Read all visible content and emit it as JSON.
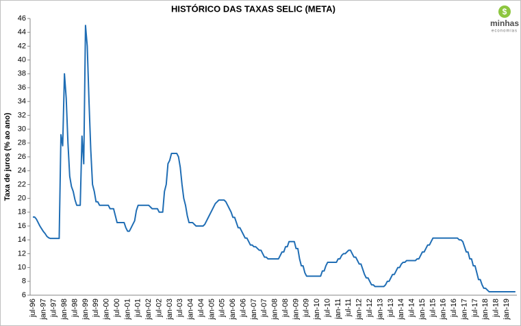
{
  "chart_data": {
    "type": "line",
    "title": "HISTÓRICO DAS TAXAS SELIC (META)",
    "y_label": "Taxa de juros (% ao ano)",
    "logo": {
      "name": "minhas",
      "tagline": "economias"
    },
    "categories": [
      "jul-96",
      null,
      null,
      null,
      null,
      null,
      "jan-97",
      null,
      null,
      null,
      null,
      null,
      "jul-97",
      null,
      null,
      null,
      null,
      null,
      "jan-98",
      null,
      null,
      null,
      null,
      null,
      "jul-98",
      null,
      null,
      null,
      null,
      null,
      "jan-99",
      null,
      null,
      null,
      null,
      null,
      "jul-99",
      null,
      null,
      null,
      null,
      null,
      "jan-00",
      null,
      null,
      null,
      null,
      null,
      "jul-00",
      null,
      null,
      null,
      null,
      null,
      "jan-01",
      null,
      null,
      null,
      null,
      null,
      "jul-01",
      null,
      null,
      null,
      null,
      null,
      "jan-02",
      null,
      null,
      null,
      null,
      null,
      "jul-02",
      null,
      null,
      null,
      null,
      null,
      "jan-03",
      null,
      null,
      null,
      null,
      null,
      "jul-03",
      null,
      null,
      null,
      null,
      null,
      "jan-04",
      null,
      null,
      null,
      null,
      null,
      "jul-04",
      null,
      null,
      null,
      null,
      null,
      "jan-05",
      null,
      null,
      null,
      null,
      null,
      "jul-05",
      null,
      null,
      null,
      null,
      null,
      "jan-06",
      null,
      null,
      null,
      null,
      null,
      "jul-06",
      null,
      null,
      null,
      null,
      null,
      "jan-07",
      null,
      null,
      null,
      null,
      null,
      "jul-07",
      null,
      null,
      null,
      null,
      null,
      "jan-08",
      null,
      null,
      null,
      null,
      null,
      "jul-08",
      null,
      null,
      null,
      null,
      null,
      "jan-09",
      null,
      null,
      null,
      null,
      null,
      "jul-09",
      null,
      null,
      null,
      null,
      null,
      "jan-10",
      null,
      null,
      null,
      null,
      null,
      "jul-10",
      null,
      null,
      null,
      null,
      null,
      "jan-11",
      null,
      null,
      null,
      null,
      null,
      "jul-11",
      null,
      null,
      null,
      null,
      null,
      "jan-12",
      null,
      null,
      null,
      null,
      null,
      "jul-12",
      null,
      null,
      null,
      null,
      null,
      "jan-13",
      null,
      null,
      null,
      null,
      null,
      "jul-13",
      null,
      null,
      null,
      null,
      null,
      "jan-14",
      null,
      null,
      null,
      null,
      null,
      "jul-14",
      null,
      null,
      null,
      null,
      null,
      "jan-15",
      null,
      null,
      null,
      null,
      null,
      "jul-15",
      null,
      null,
      null,
      null,
      null,
      "jan-16",
      null,
      null,
      null,
      null,
      null,
      "jul-16",
      null,
      null,
      null,
      null,
      null,
      "jan-17",
      null,
      null,
      null,
      null,
      null,
      "jul-17",
      null,
      null,
      null,
      null,
      null,
      "jan-18",
      null,
      null,
      null,
      null,
      null,
      "jul-18",
      null,
      null,
      null,
      null,
      null,
      "jan-19",
      null,
      null,
      null,
      null,
      null
    ],
    "series": [
      {
        "name": "Selic (meta)",
        "color": "#1f6db4",
        "values": [
          17.3,
          17.3,
          17,
          16.5,
          16,
          15.6,
          15.2,
          14.9,
          14.5,
          14.3,
          14.2,
          14.2,
          14.2,
          14.2,
          14.2,
          14.2,
          29.2,
          27.6,
          38,
          34.5,
          28,
          23.2,
          21.7,
          21,
          19.8,
          19,
          19,
          19,
          29,
          25,
          45,
          42,
          34,
          27,
          22,
          21,
          19.5,
          19.5,
          19,
          19,
          19,
          19,
          19,
          19,
          18.5,
          18.5,
          18.5,
          17.5,
          16.5,
          16.5,
          16.5,
          16.5,
          16.5,
          15.75,
          15.25,
          15.25,
          15.75,
          16.25,
          16.75,
          18.25,
          19,
          19,
          19,
          19,
          19,
          19,
          19,
          18.75,
          18.5,
          18.5,
          18.5,
          18.5,
          18,
          18,
          18,
          21,
          22,
          25,
          25.5,
          26.5,
          26.5,
          26.5,
          26.5,
          26,
          24.5,
          22,
          20,
          19,
          17.5,
          16.5,
          16.5,
          16.5,
          16.25,
          16,
          16,
          16,
          16,
          16,
          16.25,
          16.75,
          17.25,
          17.75,
          18.25,
          18.75,
          19.25,
          19.5,
          19.75,
          19.75,
          19.75,
          19.75,
          19.5,
          19,
          18.5,
          18,
          17.25,
          17.25,
          16.5,
          15.75,
          15.75,
          15.25,
          14.75,
          14.25,
          14.25,
          13.75,
          13.25,
          13.25,
          13,
          13,
          12.75,
          12.5,
          12.5,
          12,
          11.5,
          11.5,
          11.25,
          11.25,
          11.25,
          11.25,
          11.25,
          11.25,
          11.25,
          11.75,
          12.25,
          12.25,
          13,
          13,
          13.75,
          13.75,
          13.75,
          13.75,
          12.75,
          12.75,
          11.25,
          10.25,
          10.25,
          9.25,
          8.75,
          8.75,
          8.75,
          8.75,
          8.75,
          8.75,
          8.75,
          8.75,
          8.75,
          9.5,
          9.5,
          10.25,
          10.75,
          10.75,
          10.75,
          10.75,
          10.75,
          10.75,
          11.25,
          11.25,
          11.75,
          12,
          12,
          12.25,
          12.5,
          12.5,
          12,
          11.5,
          11.5,
          11,
          10.5,
          10.5,
          9.75,
          9,
          8.5,
          8.5,
          8,
          7.5,
          7.5,
          7.25,
          7.25,
          7.25,
          7.25,
          7.25,
          7.25,
          7.5,
          8,
          8,
          8.5,
          9,
          9,
          9.5,
          10,
          10,
          10.5,
          10.75,
          10.75,
          11,
          11,
          11,
          11,
          11,
          11,
          11.25,
          11.25,
          11.75,
          12.25,
          12.25,
          12.75,
          13.25,
          13.25,
          13.75,
          14.25,
          14.25,
          14.25,
          14.25,
          14.25,
          14.25,
          14.25,
          14.25,
          14.25,
          14.25,
          14.25,
          14.25,
          14.25,
          14.25,
          14.25,
          14,
          14,
          13.75,
          13,
          12.25,
          12.25,
          11.25,
          11.25,
          10.25,
          10.25,
          9.25,
          8.25,
          8.25,
          7.5,
          7,
          7,
          6.75,
          6.5,
          6.5,
          6.5,
          6.5,
          6.5,
          6.5,
          6.5,
          6.5,
          6.5,
          6.5,
          6.5,
          6.5,
          6.5,
          6.5,
          6.5,
          6.5
        ]
      }
    ],
    "ylim": [
      6,
      46
    ],
    "yticks": [
      6,
      8,
      10,
      12,
      14,
      16,
      18,
      20,
      22,
      24,
      26,
      28,
      30,
      32,
      34,
      36,
      38,
      40,
      42,
      44,
      46
    ],
    "grid": false
  }
}
